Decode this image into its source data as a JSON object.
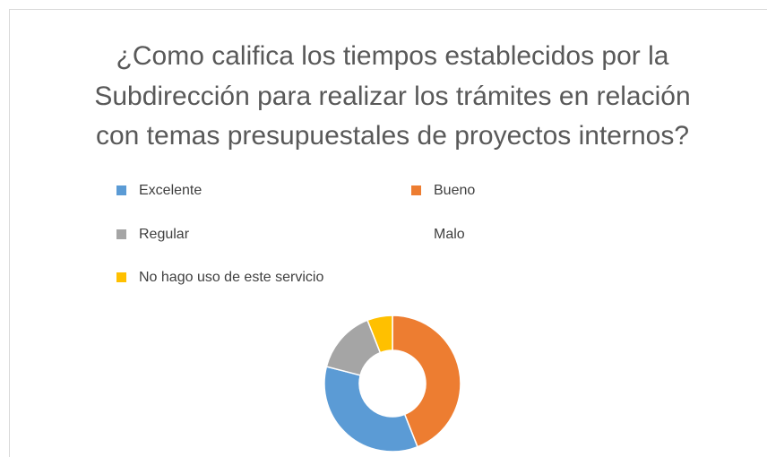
{
  "chart_data": {
    "type": "donut",
    "title_lines": [
      "¿Como califica los tiempos establecidos por la",
      "Subdirección para realizar los trámites en relación",
      "con temas presupuestales de proyectos internos?"
    ],
    "categories": [
      "Excelente",
      "Bueno",
      "Regular",
      "Malo",
      "No hago uso de este servicio"
    ],
    "values": [
      35,
      44,
      15,
      0,
      6
    ],
    "colors": [
      "#5b9bd5",
      "#ed7d31",
      "#a5a5a5",
      "#ffffff",
      "#ffc000"
    ]
  }
}
